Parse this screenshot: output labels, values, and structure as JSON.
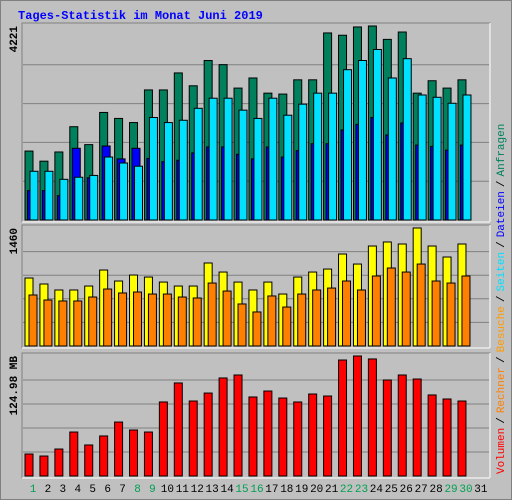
{
  "title": "Tages-Statistik im Monat Juni 2019",
  "days": [
    1,
    2,
    3,
    4,
    5,
    6,
    7,
    8,
    9,
    10,
    11,
    12,
    13,
    14,
    15,
    16,
    17,
    18,
    19,
    20,
    21,
    22,
    23,
    24,
    25,
    26,
    27,
    28,
    29,
    30,
    31
  ],
  "weekend": [
    1,
    8,
    9,
    15,
    16,
    22,
    23,
    29,
    30
  ],
  "weekday_color": "#000000",
  "weekend_color": "#00a050",
  "legend_separator": "/",
  "chart_data": [
    {
      "type": "bar",
      "ylim": [
        0,
        4221
      ],
      "yticks": [
        4221
      ],
      "grid": true,
      "series": [
        {
          "name": "Anfragen",
          "color": "#00805c",
          "values": [
            1500,
            1280,
            1480,
            2030,
            1640,
            2340,
            2210,
            2120,
            2830,
            2830,
            3200,
            2920,
            3470,
            3380,
            2870,
            3090,
            2760,
            2740,
            3050,
            3050,
            4070,
            4020,
            4200,
            4221,
            3930,
            4090,
            2760,
            3030,
            2870,
            3050,
            null
          ]
        },
        {
          "name": "Dateien",
          "color": "#0000ff",
          "values": [
            640,
            640,
            530,
            1560,
            920,
            1610,
            1330,
            1560,
            1340,
            1270,
            1300,
            1460,
            1590,
            1590,
            1430,
            1330,
            1590,
            1370,
            1510,
            1660,
            1660,
            1960,
            2080,
            2230,
            1850,
            2110,
            1630,
            1600,
            1520,
            1630,
            null
          ]
        },
        {
          "name": "Seiten",
          "color": "#00e0ff",
          "values": [
            1060,
            1060,
            885,
            930,
            970,
            1370,
            1240,
            1170,
            2230,
            2120,
            2170,
            2430,
            2650,
            2650,
            2390,
            2210,
            2650,
            2280,
            2520,
            2760,
            2760,
            3270,
            3470,
            3710,
            3090,
            3510,
            2720,
            2670,
            2540,
            2720,
            null
          ]
        }
      ]
    },
    {
      "type": "bar",
      "ylim": [
        0,
        1460
      ],
      "yticks": [
        1460
      ],
      "grid": true,
      "series": [
        {
          "name": "Besuche",
          "color": "#ffff00",
          "values": [
            841,
            767,
            693,
            693,
            742,
            940,
            804,
            878,
            853,
            791,
            742,
            742,
            1027,
            915,
            791,
            693,
            791,
            643,
            853,
            915,
            952,
            1138,
            1014,
            1237,
            1287,
            1262,
            1460,
            1237,
            1101,
            1262,
            null
          ]
        },
        {
          "name": "Rechner",
          "color": "#ff8000",
          "values": [
            631,
            569,
            557,
            557,
            606,
            705,
            656,
            668,
            643,
            643,
            606,
            594,
            779,
            680,
            520,
            421,
            619,
            482,
            643,
            693,
            717,
            804,
            693,
            866,
            965,
            915,
            1014,
            804,
            779,
            866,
            null
          ]
        }
      ]
    },
    {
      "type": "bar",
      "ylim": [
        0,
        124.98
      ],
      "yticks": [
        {
          "value": 124.98,
          "label": "124.98 MB"
        }
      ],
      "grid": true,
      "series": [
        {
          "name": "Volumen",
          "color": "#ff0000",
          "values": [
            22.9,
            20.8,
            28.1,
            45.8,
            32.3,
            41.7,
            56.2,
            47.9,
            45.8,
            77.1,
            96.9,
            78.1,
            86.4,
            102.1,
            105.2,
            82.3,
            88.5,
            81.2,
            77.1,
            85.4,
            83.3,
            120.8,
            124.98,
            121.9,
            100.0,
            105.2,
            101.0,
            84.4,
            80.2,
            78.1,
            null
          ]
        }
      ]
    }
  ]
}
